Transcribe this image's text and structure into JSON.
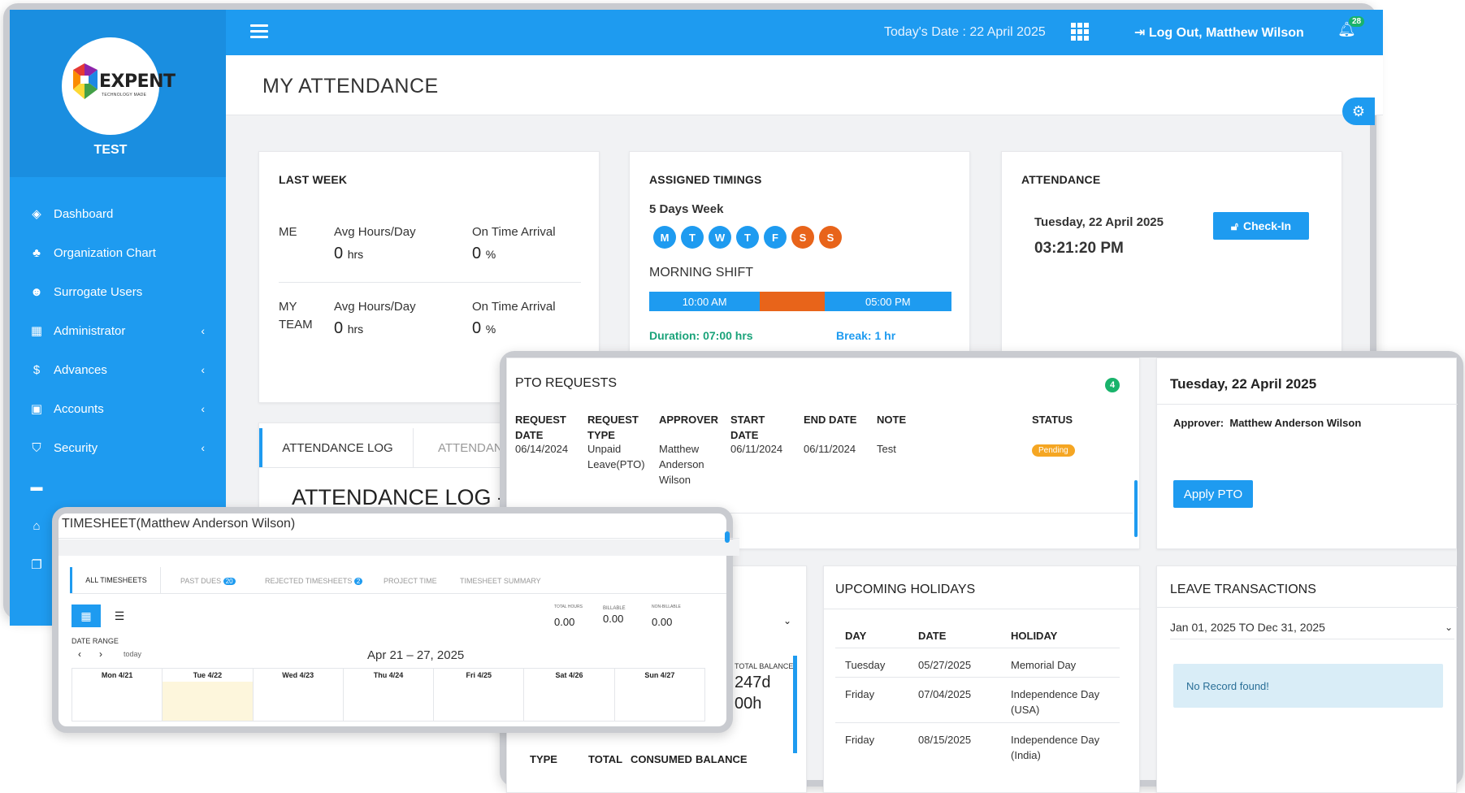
{
  "sidebar": {
    "logo_text": "EXPENT",
    "logo_sub": "TECHNOLOGY MADE",
    "org": "TEST",
    "items": [
      {
        "label": "Dashboard",
        "icon": "diamond-icon"
      },
      {
        "label": "Organization Chart",
        "icon": "sitemap-icon"
      },
      {
        "label": "Surrogate Users",
        "icon": "users-icon"
      },
      {
        "label": "Administrator",
        "icon": "grid-icon"
      },
      {
        "label": "Advances",
        "icon": "dollar-icon"
      },
      {
        "label": "Accounts",
        "icon": "money-icon"
      },
      {
        "label": "Security",
        "icon": "shield-icon"
      }
    ]
  },
  "topbar": {
    "today": "Today's Date : 22 April 2025",
    "logout": "Log Out, Matthew Wilson",
    "notifications": "28"
  },
  "page": {
    "title": "MY ATTENDANCE"
  },
  "last_week": {
    "title": "LAST WEEK",
    "me_label": "ME",
    "team_label_1": "MY",
    "team_label_2": "TEAM",
    "avg_label": "Avg Hours/Day",
    "ontime_label": "On Time Arrival",
    "me_avg": "0",
    "me_ontime": "0",
    "team_avg": "0",
    "team_ontime": "0",
    "hrs_unit": "hrs",
    "pct_unit": "%"
  },
  "timings": {
    "title": "ASSIGNED TIMINGS",
    "week": "5 Days Week",
    "days": [
      "M",
      "T",
      "W",
      "T",
      "F",
      "S",
      "S"
    ],
    "shift": "MORNING SHIFT",
    "start": "10:00 AM",
    "end": "05:00 PM",
    "duration": "Duration: 07:00 hrs",
    "break": "Break: 1 hr"
  },
  "attendance": {
    "title": "ATTENDANCE",
    "date": "Tuesday, 22 April 2025",
    "time": "03:21:20 PM",
    "checkin": "Check-In"
  },
  "log_tabs": [
    "ATTENDANCE LOG",
    "ATTENDAN"
  ],
  "log_heading": "ATTENDANCE LOG -",
  "pto": {
    "title": "PTO REQUESTS",
    "count": "4",
    "headers": [
      "REQUEST DATE",
      "REQUEST TYPE",
      "APPROVER",
      "START DATE",
      "END DATE",
      "NOTE",
      "STATUS"
    ],
    "row": {
      "request_date": "06/14/2024",
      "type": "Unpaid Leave(PTO)",
      "approver": "Matthew Anderson Wilson",
      "start": "06/11/2024",
      "end": "06/11/2024",
      "note": "Test",
      "status": "Pending"
    }
  },
  "apply_card": {
    "date": "Tuesday, 22 April 2025",
    "approver_label": "Approver:",
    "approver": "Matthew Anderson Wilson",
    "button": "Apply PTO"
  },
  "balance": {
    "label": "TOTAL BALANCE",
    "days": "247d",
    "hours": "00h",
    "headers": [
      "TYPE",
      "TOTAL",
      "CONSUMED",
      "BALANCE"
    ]
  },
  "holidays": {
    "title": "UPCOMING HOLIDAYS",
    "headers": [
      "DAY",
      "DATE",
      "HOLIDAY"
    ],
    "rows": [
      {
        "day": "Tuesday",
        "date": "05/27/2025",
        "holiday": "Memorial Day"
      },
      {
        "day": "Friday",
        "date": "07/04/2025",
        "holiday": "Independence Day (USA)"
      },
      {
        "day": "Friday",
        "date": "08/15/2025",
        "holiday": "Independence Day (India)"
      }
    ]
  },
  "leave": {
    "title": "LEAVE TRANSACTIONS",
    "range": "Jan 01, 2025 TO Dec 31, 2025",
    "empty": "No Record found!"
  },
  "timesheet": {
    "title": "TIMESHEET(Matthew Anderson Wilson)",
    "tabs": [
      {
        "label": "ALL TIMESHEETS"
      },
      {
        "label": "PAST DUES",
        "badge": "20"
      },
      {
        "label": "REJECTED TIMESHEETS",
        "badge": "2"
      },
      {
        "label": "PROJECT TIME"
      },
      {
        "label": "TIMESHEET SUMMARY"
      }
    ],
    "totals": [
      {
        "label": "TOTAL HOURS",
        "value": "0.00"
      },
      {
        "label": "BILLABLE",
        "value": "0.00"
      },
      {
        "label": "NON-BILLABLE",
        "value": "0.00"
      }
    ],
    "date_range_label": "DATE RANGE",
    "today": "today",
    "range": "Apr 21 – 27, 2025",
    "days": [
      "Mon 4/21",
      "Tue 4/22",
      "Wed 4/23",
      "Thu 4/24",
      "Fri 4/25",
      "Sat 4/26",
      "Sun 4/27"
    ]
  }
}
